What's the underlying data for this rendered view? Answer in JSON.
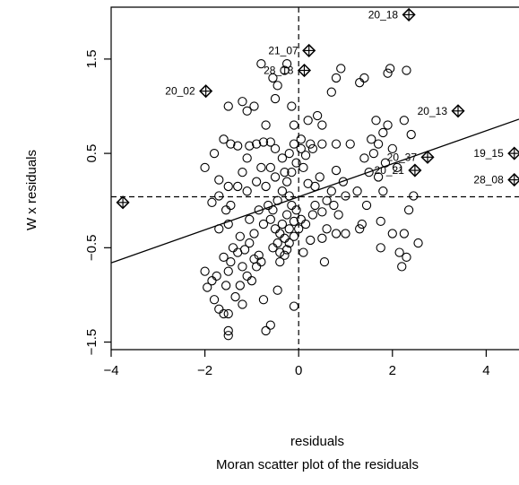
{
  "chart_data": {
    "type": "scatter",
    "xlabel": "residuals",
    "ylabel": "W x residuals",
    "caption": "Moran scatter plot of the residuals",
    "xlim": [
      -4.0,
      4.7
    ],
    "ylim": [
      -1.58,
      2.05
    ],
    "x_ticks": [
      -4,
      -2,
      0,
      2,
      4
    ],
    "x_tick_labels": [
      "−4",
      "−2",
      "0",
      "2",
      "4"
    ],
    "y_ticks": [
      -1.5,
      -0.5,
      0.5,
      1.5
    ],
    "y_tick_labels": [
      "−1.5",
      "−0.5",
      "0.5",
      "1.5"
    ],
    "mean_x": 0.0,
    "mean_y": 0.04,
    "regression": {
      "intercept": 0.04,
      "slope": 0.175
    },
    "influential_points": [
      {
        "label": "20_18",
        "x": 2.35,
        "y": 1.97
      },
      {
        "label": "21_07",
        "x": 0.22,
        "y": 1.59
      },
      {
        "label": "28_18",
        "x": 0.12,
        "y": 1.38
      },
      {
        "label": "20_02",
        "x": -1.98,
        "y": 1.16
      },
      {
        "label": "20_13",
        "x": 3.4,
        "y": 0.95
      },
      {
        "label": "19_15",
        "x": 4.6,
        "y": 0.5
      },
      {
        "label": "28_08",
        "x": 4.6,
        "y": 0.22
      },
      {
        "label": "20_37",
        "x": 2.75,
        "y": 0.46
      },
      {
        "label": "20_21",
        "x": 2.48,
        "y": 0.32
      },
      {
        "label": "",
        "x": -3.75,
        "y": -0.02
      }
    ],
    "points": [
      [
        -2.0,
        -0.75
      ],
      [
        -1.95,
        -0.92
      ],
      [
        -1.85,
        -0.85
      ],
      [
        -1.8,
        -1.05
      ],
      [
        -1.75,
        -0.8
      ],
      [
        -1.7,
        -1.15
      ],
      [
        -1.6,
        -1.2
      ],
      [
        -1.5,
        -1.38
      ],
      [
        -1.5,
        -1.43
      ],
      [
        -1.55,
        -0.9
      ],
      [
        -1.6,
        -0.6
      ],
      [
        -1.5,
        -0.75
      ],
      [
        -1.45,
        -0.65
      ],
      [
        -1.4,
        -0.5
      ],
      [
        -1.3,
        -0.55
      ],
      [
        -1.25,
        -0.9
      ],
      [
        -1.2,
        -0.7
      ],
      [
        -1.1,
        -0.8
      ],
      [
        -1.0,
        -0.85
      ],
      [
        -0.9,
        -0.7
      ],
      [
        -0.85,
        -0.58
      ],
      [
        -0.8,
        -0.65
      ],
      [
        -0.75,
        -1.05
      ],
      [
        -0.7,
        -1.38
      ],
      [
        -0.6,
        -1.32
      ],
      [
        -0.45,
        -0.95
      ],
      [
        -0.1,
        -1.12
      ],
      [
        -1.15,
        -0.52
      ],
      [
        -0.95,
        -0.62
      ],
      [
        -1.05,
        -0.45
      ],
      [
        -1.25,
        -0.38
      ],
      [
        -1.5,
        -0.25
      ],
      [
        -1.55,
        -0.1
      ],
      [
        -1.7,
        -0.3
      ],
      [
        -1.7,
        0.05
      ],
      [
        -1.5,
        0.15
      ],
      [
        -1.45,
        -0.05
      ],
      [
        -1.3,
        0.15
      ],
      [
        -1.2,
        0.3
      ],
      [
        -1.1,
        0.45
      ],
      [
        -0.9,
        0.6
      ],
      [
        -0.75,
        0.62
      ],
      [
        -1.05,
        0.58
      ],
      [
        -1.3,
        0.58
      ],
      [
        -1.45,
        0.6
      ],
      [
        -1.6,
        0.65
      ],
      [
        -1.7,
        0.22
      ],
      [
        -1.85,
        -0.02
      ],
      [
        -2.0,
        0.35
      ],
      [
        -1.8,
        0.5
      ],
      [
        -1.5,
        1.0
      ],
      [
        -1.2,
        1.05
      ],
      [
        -1.1,
        0.95
      ],
      [
        -0.95,
        1.0
      ],
      [
        -0.7,
        0.8
      ],
      [
        -0.6,
        0.62
      ],
      [
        -0.5,
        0.55
      ],
      [
        -0.5,
        1.08
      ],
      [
        -0.45,
        1.22
      ],
      [
        -0.55,
        1.3
      ],
      [
        -0.3,
        1.38
      ],
      [
        -0.25,
        1.45
      ],
      [
        -0.8,
        1.45
      ],
      [
        -0.15,
        1.0
      ],
      [
        -0.1,
        0.8
      ],
      [
        0.05,
        0.55
      ],
      [
        0.3,
        0.55
      ],
      [
        0.5,
        0.6
      ],
      [
        0.8,
        0.6
      ],
      [
        1.1,
        0.6
      ],
      [
        0.2,
        0.85
      ],
      [
        0.5,
        0.8
      ],
      [
        0.7,
        1.15
      ],
      [
        0.8,
        1.3
      ],
      [
        0.9,
        1.4
      ],
      [
        1.3,
        1.25
      ],
      [
        1.4,
        1.3
      ],
      [
        1.9,
        1.35
      ],
      [
        1.95,
        1.4
      ],
      [
        2.3,
        1.38
      ],
      [
        1.65,
        0.85
      ],
      [
        1.8,
        0.72
      ],
      [
        1.9,
        0.8
      ],
      [
        2.25,
        0.85
      ],
      [
        2.4,
        0.7
      ],
      [
        1.55,
        0.65
      ],
      [
        1.7,
        0.6
      ],
      [
        1.4,
        0.45
      ],
      [
        1.5,
        0.3
      ],
      [
        1.7,
        0.25
      ],
      [
        1.85,
        0.4
      ],
      [
        2.0,
        0.55
      ],
      [
        2.1,
        0.35
      ],
      [
        1.25,
        0.1
      ],
      [
        1.0,
        0.05
      ],
      [
        1.35,
        -0.25
      ],
      [
        1.75,
        -0.22
      ],
      [
        2.0,
        -0.35
      ],
      [
        2.25,
        -0.35
      ],
      [
        2.35,
        -0.1
      ],
      [
        2.3,
        -0.6
      ],
      [
        2.2,
        -0.7
      ],
      [
        2.15,
        -0.55
      ],
      [
        2.55,
        -0.45
      ],
      [
        1.75,
        -0.5
      ],
      [
        1.3,
        -0.3
      ],
      [
        0.8,
        -0.35
      ],
      [
        0.6,
        -0.3
      ],
      [
        0.5,
        -0.4
      ],
      [
        0.25,
        -0.42
      ],
      [
        0.15,
        -0.25
      ],
      [
        0.35,
        -0.05
      ],
      [
        0.5,
        -0.12
      ],
      [
        0.6,
        0.0
      ],
      [
        0.7,
        0.1
      ],
      [
        0.35,
        0.15
      ],
      [
        0.2,
        0.18
      ],
      [
        0.45,
        0.25
      ],
      [
        0.8,
        0.32
      ],
      [
        0.95,
        0.2
      ],
      [
        0.1,
        0.35
      ],
      [
        -0.05,
        0.4
      ],
      [
        -0.15,
        0.3
      ],
      [
        -0.25,
        0.2
      ],
      [
        -0.35,
        0.1
      ],
      [
        -0.45,
        0.0
      ],
      [
        -0.55,
        -0.1
      ],
      [
        -0.6,
        -0.2
      ],
      [
        -0.5,
        -0.3
      ],
      [
        -0.4,
        -0.35
      ],
      [
        -0.3,
        -0.4
      ],
      [
        -0.2,
        -0.45
      ],
      [
        -0.1,
        -0.38
      ],
      [
        0.0,
        -0.3
      ],
      [
        0.05,
        -0.2
      ],
      [
        -0.05,
        -0.1
      ],
      [
        -0.15,
        -0.05
      ],
      [
        -0.25,
        -0.15
      ],
      [
        -0.35,
        -0.25
      ],
      [
        -0.45,
        -0.45
      ],
      [
        -0.55,
        -0.5
      ],
      [
        -0.4,
        -0.55
      ],
      [
        -0.3,
        -0.58
      ],
      [
        -0.2,
        -0.3
      ],
      [
        -0.1,
        -0.22
      ],
      [
        -0.2,
        0.05
      ],
      [
        -0.3,
        0.3
      ],
      [
        -0.2,
        0.5
      ],
      [
        -0.1,
        0.6
      ],
      [
        0.05,
        0.65
      ],
      [
        -0.9,
        0.2
      ],
      [
        -0.8,
        0.35
      ],
      [
        -1.1,
        0.1
      ],
      [
        -0.7,
        0.15
      ],
      [
        -0.6,
        0.35
      ],
      [
        -0.5,
        0.25
      ],
      [
        -0.85,
        -0.1
      ],
      [
        -0.75,
        -0.25
      ],
      [
        -0.95,
        -0.35
      ],
      [
        -1.05,
        -0.2
      ],
      [
        0.25,
        0.6
      ],
      [
        0.4,
        0.9
      ],
      [
        0.15,
        0.48
      ],
      [
        1.6,
        0.5
      ],
      [
        1.45,
        -0.05
      ],
      [
        0.85,
        -0.15
      ],
      [
        0.75,
        -0.05
      ],
      [
        0.3,
        -0.15
      ],
      [
        -0.65,
        -0.05
      ],
      [
        -0.4,
        -0.65
      ],
      [
        -0.25,
        -0.52
      ],
      [
        0.1,
        -0.55
      ],
      [
        0.55,
        -0.65
      ],
      [
        1.0,
        -0.35
      ],
      [
        1.8,
        0.1
      ],
      [
        2.45,
        0.05
      ],
      [
        -1.35,
        -1.02
      ],
      [
        -1.5,
        -1.2
      ],
      [
        -1.2,
        -1.1
      ],
      [
        -0.35,
        0.45
      ]
    ]
  }
}
